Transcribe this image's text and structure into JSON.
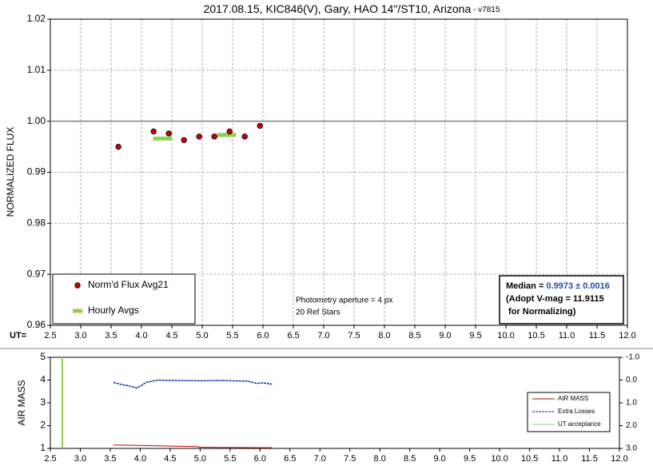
{
  "chart_data": [
    {
      "type": "scatter",
      "title": "2017.08.15, KIC846(V), Gary, HAO 14\"/ST10, Arizona",
      "subtitle": " - v7815",
      "ylabel": "NORMALIZED FLUX",
      "xlabel": "UT=",
      "xlim": [
        2.5,
        12.0
      ],
      "xticks": [
        2.5,
        {
          "value": 3,
          "label": "3.0"
        },
        3.5,
        {
          "value": 4,
          "label": "4.0"
        },
        4.5,
        {
          "value": 5,
          "label": "5.0"
        },
        5.5,
        {
          "value": 6,
          "label": "6.0"
        },
        6.5,
        {
          "value": 7,
          "label": "7.0"
        },
        7.5,
        {
          "value": 8,
          "label": "8.0"
        },
        8.5,
        {
          "value": 9,
          "label": "9.0"
        },
        9.5,
        {
          "value": 10,
          "label": "10.0"
        },
        10.5,
        {
          "value": 11,
          "label": "11.0"
        },
        11.5,
        {
          "value": 12,
          "label": "12.0"
        }
      ],
      "ylim": [
        0.96,
        1.02
      ],
      "yticks": [
        0.96,
        0.97,
        0.98,
        0.99,
        {
          "value": 1,
          "label": "1.00"
        },
        1.01,
        1.02
      ],
      "grid": true,
      "reference_line": 1,
      "series": [
        {
          "name": "Norm'd Flux Avg21",
          "color": "#cc0000",
          "x": [
            3.62,
            4.2,
            4.45,
            4.7,
            4.95,
            5.2,
            5.45,
            5.7,
            5.95
          ],
          "values": [
            0.995,
            0.998,
            0.9976,
            0.9963,
            0.997,
            0.997,
            0.998,
            0.997,
            0.9991
          ]
        },
        {
          "name": "Hourly Avgs",
          "color": "#92d050",
          "x": [
            4.35,
            5.4
          ],
          "values": [
            0.9966,
            0.9973
          ]
        }
      ],
      "annotations": [
        "Photometry aperture = 4 px",
        "20 Ref Stars"
      ],
      "info_box": {
        "median_label": "Median = ",
        "median": "0.9973 ± 0.0016",
        "line2": "(Adopt V-mag = 11.9115",
        "line3": " for Normalizing)"
      }
    },
    {
      "type": "line",
      "ylabel": "AIR MASS",
      "xlim": [
        2.5,
        12.0
      ],
      "xticks": [
        2.5,
        {
          "value": 3,
          "label": "3.0"
        },
        3.5,
        {
          "value": 4,
          "label": "4.0"
        },
        4.5,
        {
          "value": 5,
          "label": "5.0"
        },
        5.5,
        {
          "value": 6,
          "label": "6.0"
        },
        6.5,
        {
          "value": 7,
          "label": "7.0"
        },
        7.5,
        {
          "value": 8,
          "label": "8.0"
        },
        8.5,
        {
          "value": 9,
          "label": "9.0"
        },
        9.5,
        {
          "value": 10,
          "label": "10.0"
        },
        10.5,
        {
          "value": 11,
          "label": "11.0"
        },
        11.5,
        {
          "value": 12,
          "label": "12.0"
        }
      ],
      "ylim": [
        1,
        5
      ],
      "yticks": [
        1,
        2,
        3,
        4,
        5
      ],
      "y2lim": [
        3,
        -1
      ],
      "y2ticks": [
        {
          "value": -1,
          "label": "-1.0"
        },
        {
          "value": 0,
          "label": "0.0"
        },
        {
          "value": 1,
          "label": "1.0"
        },
        {
          "value": 2,
          "label": "2.0"
        },
        {
          "value": 3,
          "label": "3.0"
        }
      ],
      "series": [
        {
          "name": "AIR MASS",
          "color": "#c00000",
          "x": [
            3.55,
            4.0,
            4.5,
            4.95,
            5.0,
            5.5,
            6.0,
            6.2
          ],
          "values": [
            1.15,
            1.13,
            1.1,
            1.08,
            1.05,
            1.04,
            1.03,
            1.03
          ]
        },
        {
          "name": "Extra Losses",
          "color": "#002fa0",
          "axis": "y2",
          "dashed": true,
          "x": [
            3.55,
            3.7,
            3.8,
            3.95,
            4.1,
            4.3,
            4.6,
            5.0,
            5.4,
            5.8,
            5.95,
            6.05,
            6.2
          ],
          "values": [
            0.1,
            0.2,
            0.25,
            0.35,
            0.1,
            0.0,
            0.02,
            0.03,
            0.02,
            0.05,
            0.15,
            0.12,
            0.18
          ]
        },
        {
          "name": "UT acceptance",
          "color": "#92d050",
          "x": [
            2.7,
            2.7
          ],
          "values": [
            1,
            5
          ]
        }
      ]
    }
  ]
}
